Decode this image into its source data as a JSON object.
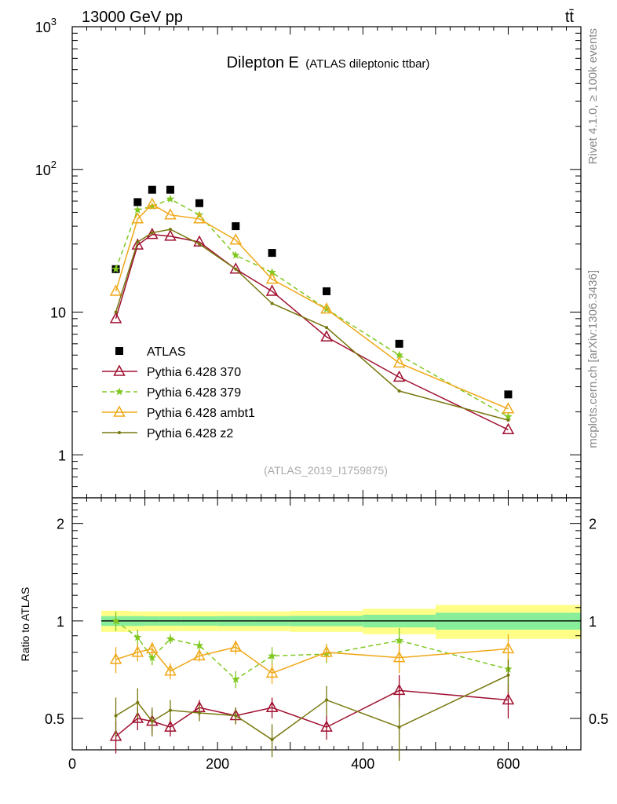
{
  "header": {
    "left": "13000 GeV pp",
    "right": "tt̄",
    "side_top": "Rivet 4.1.0, ≥ 100k events",
    "side_bottom": "mcplots.cern.ch [arXiv:1306.3436]",
    "watermark": "(ATLAS_2019_I1759875)"
  },
  "chart_data": [
    {
      "type": "scatter",
      "panel": "main",
      "title": "Dilepton E",
      "subtitle": "(ATLAS dileptonic ttbar)",
      "xlabel": "",
      "ylabel": "",
      "xlim": [
        0,
        700
      ],
      "ylim": [
        0.5,
        1000
      ],
      "yscale": "log",
      "x_ticks": [
        "0",
        "200",
        "400",
        "600"
      ],
      "y_ticks": [
        "1",
        "10",
        "10^2",
        "10^3"
      ],
      "legend_position": "lower-left",
      "x": [
        60,
        90,
        110,
        135,
        175,
        225,
        275,
        350,
        450,
        600
      ],
      "series": [
        {
          "name": "ATLAS",
          "marker": "square",
          "color": "#000000",
          "values": [
            20,
            59,
            72,
            72,
            58,
            40,
            26,
            14,
            6,
            2.65
          ]
        },
        {
          "name": "Pythia 6.428 370",
          "marker": "open-triangle",
          "color": "#a01030",
          "line": "solid",
          "values": [
            9,
            29.5,
            35,
            34,
            31,
            20,
            14,
            6.7,
            3.5,
            1.5
          ]
        },
        {
          "name": "Pythia 6.428 379",
          "marker": "star",
          "color": "#80c820",
          "line": "dashed",
          "values": [
            20,
            52,
            55,
            62,
            48,
            25,
            19,
            10.5,
            5,
            1.85
          ]
        },
        {
          "name": "Pythia 6.428 ambt1",
          "marker": "open-triangle",
          "color": "#f0a818",
          "line": "solid",
          "values": [
            14,
            45,
            57,
            48,
            45,
            32,
            17,
            10.5,
            4.4,
            2.1
          ]
        },
        {
          "name": "Pythia 6.428 z2",
          "marker": "dot",
          "color": "#787810",
          "line": "solid",
          "values": [
            10,
            31,
            36,
            38,
            30,
            20,
            11.5,
            7.8,
            2.8,
            1.75
          ]
        }
      ]
    },
    {
      "type": "scatter",
      "panel": "ratio",
      "ylabel": "Ratio to ATLAS",
      "xlim": [
        0,
        700
      ],
      "ylim": [
        0.4,
        2.4
      ],
      "yscale": "log",
      "x_ticks": [
        "0",
        "200",
        "400",
        "600"
      ],
      "y_ticks": [
        "0.5",
        "1",
        "2"
      ],
      "x": [
        60,
        90,
        110,
        135,
        175,
        225,
        275,
        350,
        450,
        600
      ],
      "band_edges": [
        40,
        80,
        100,
        120,
        150,
        200,
        250,
        300,
        400,
        500,
        700
      ],
      "band_inner": [
        0.035,
        0.035,
        0.033,
        0.033,
        0.033,
        0.035,
        0.035,
        0.037,
        0.045,
        0.06
      ],
      "band_outer": [
        0.075,
        0.07,
        0.07,
        0.07,
        0.07,
        0.07,
        0.07,
        0.075,
        0.09,
        0.12
      ],
      "series": [
        {
          "name": "Pythia 6.428 370",
          "color": "#a01030",
          "marker": "open-triangle",
          "line": "solid",
          "values": [
            0.44,
            0.5,
            0.49,
            0.47,
            0.54,
            0.51,
            0.54,
            0.47,
            0.61,
            0.57
          ],
          "errors": [
            0.05,
            0.04,
            0.04,
            0.03,
            0.03,
            0.03,
            0.04,
            0.04,
            0.07,
            0.07
          ]
        },
        {
          "name": "Pythia 6.428 379",
          "color": "#80c820",
          "marker": "star",
          "line": "dashed",
          "values": [
            1.0,
            0.89,
            0.77,
            0.88,
            0.84,
            0.66,
            0.78,
            0.79,
            0.87,
            0.71
          ],
          "errors": [
            0.07,
            0.05,
            0.04,
            0.03,
            0.03,
            0.04,
            0.05,
            0.05,
            0.08,
            0.08
          ]
        },
        {
          "name": "Pythia 6.428 ambt1",
          "color": "#f0a818",
          "marker": "open-triangle",
          "line": "solid",
          "values": [
            0.76,
            0.8,
            0.82,
            0.7,
            0.78,
            0.83,
            0.69,
            0.8,
            0.77,
            0.82
          ],
          "errors": [
            0.07,
            0.05,
            0.04,
            0.04,
            0.03,
            0.04,
            0.05,
            0.05,
            0.08,
            0.09
          ]
        },
        {
          "name": "Pythia 6.428 z2",
          "color": "#787810",
          "marker": "dot",
          "line": "solid",
          "values": [
            0.51,
            0.56,
            0.49,
            0.53,
            0.52,
            0.51,
            0.43,
            0.57,
            0.47,
            0.68
          ],
          "errors": [
            0.07,
            0.06,
            0.05,
            0.04,
            0.03,
            0.03,
            0.05,
            0.06,
            0.1,
            0.08
          ]
        }
      ]
    }
  ]
}
